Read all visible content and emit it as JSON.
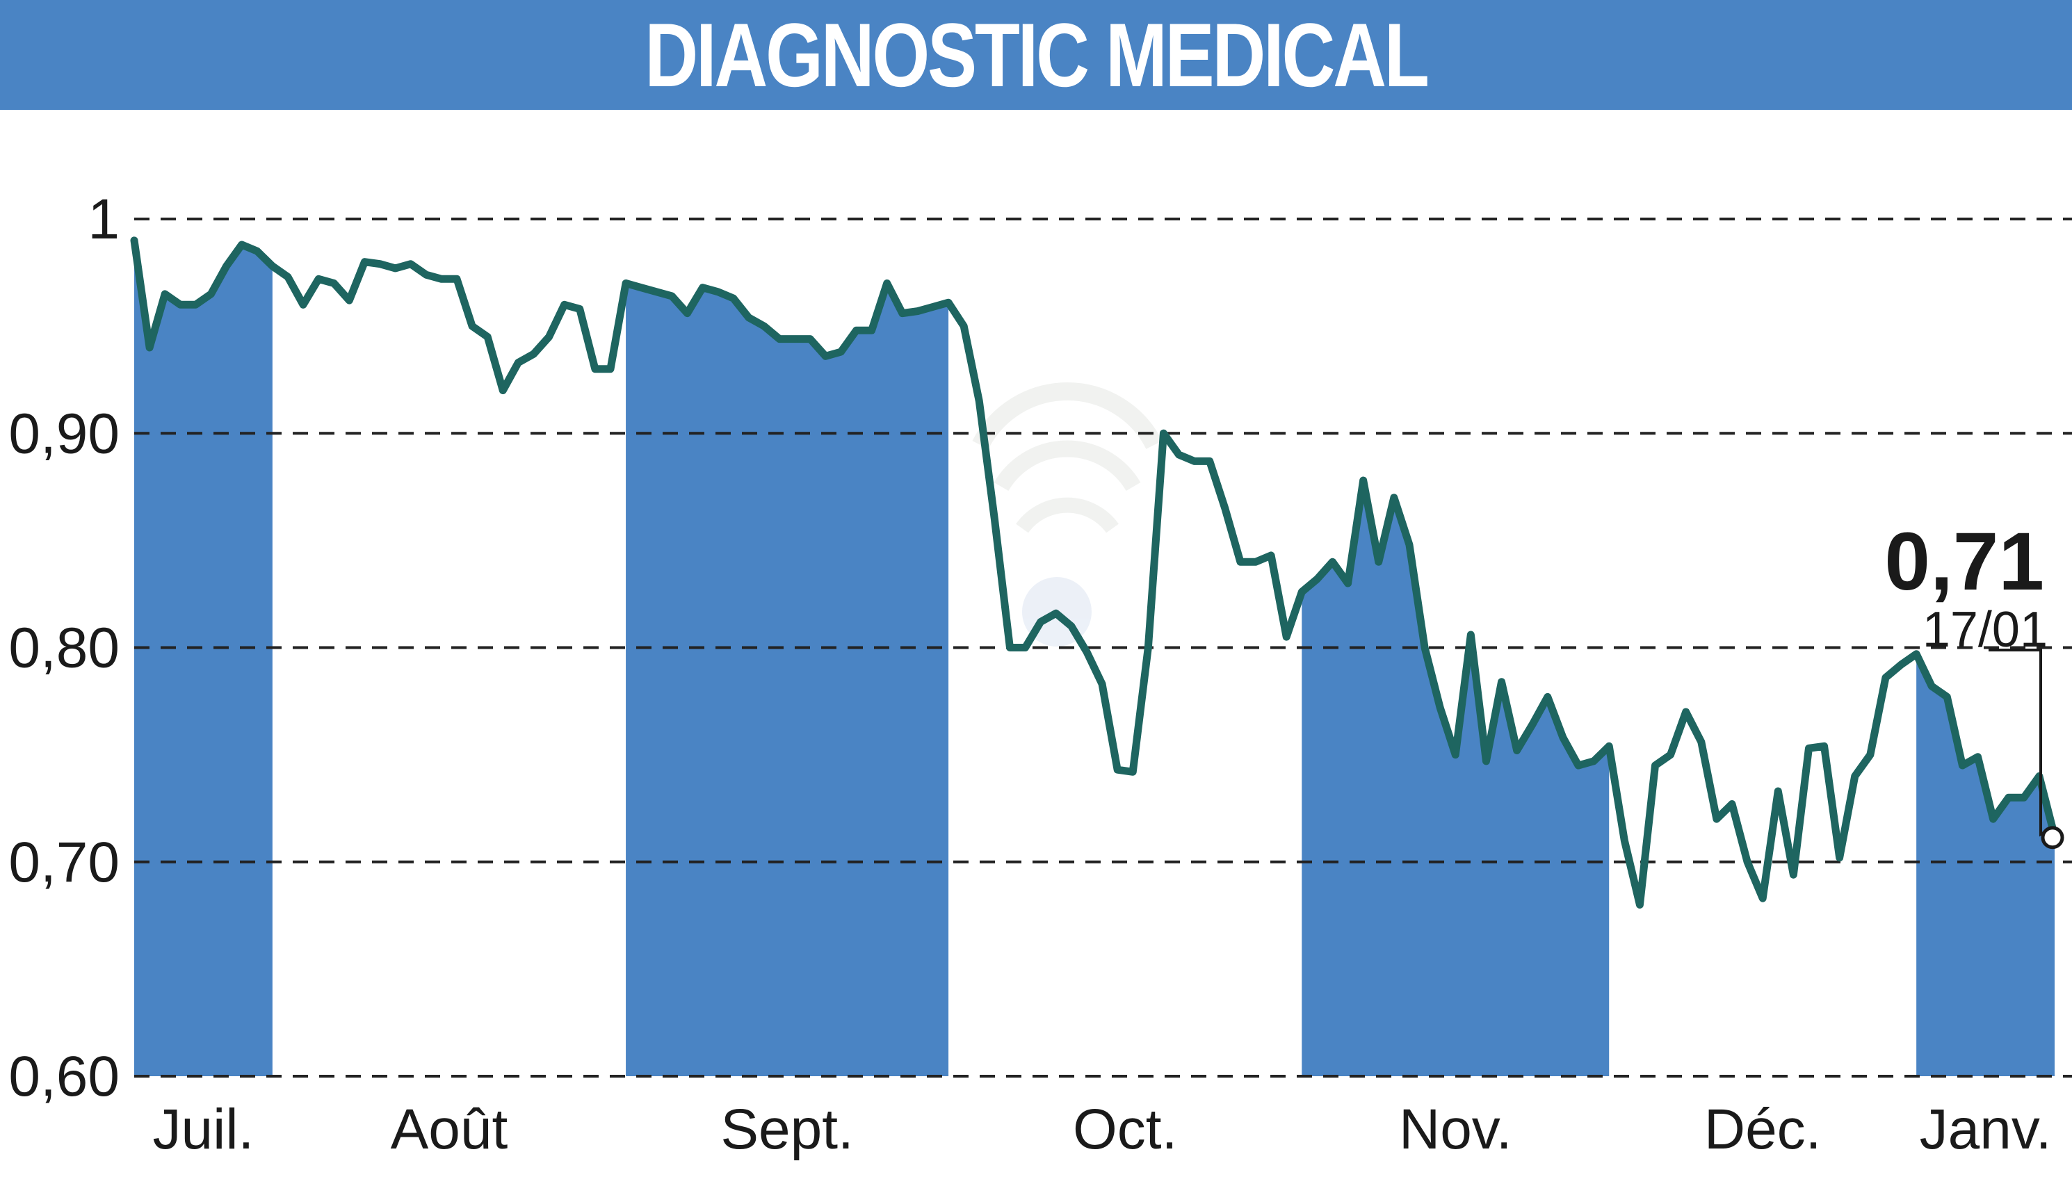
{
  "title": "DIAGNOSTIC MEDICAL",
  "colors": {
    "accent": "#4a84c4",
    "line": "#1e6560",
    "grid": "#222222"
  },
  "chart_data": {
    "type": "line",
    "title": "DIAGNOSTIC MEDICAL",
    "xlabel": "",
    "ylabel": "",
    "ylim": [
      0.6,
      1.0
    ],
    "yticks": [
      {
        "value": 1.0,
        "label": "1"
      },
      {
        "value": 0.9,
        "label": "0,90"
      },
      {
        "value": 0.8,
        "label": "0,80"
      },
      {
        "value": 0.7,
        "label": "0,70"
      },
      {
        "value": 0.6,
        "label": "0,60"
      }
    ],
    "grid": true,
    "months": [
      {
        "label": "Juil.",
        "start": 0,
        "end": 9,
        "shaded": true
      },
      {
        "label": "Août",
        "start": 9,
        "end": 32,
        "shaded": false
      },
      {
        "label": "Sept.",
        "start": 32,
        "end": 53,
        "shaded": true
      },
      {
        "label": "Oct.",
        "start": 53,
        "end": 76,
        "shaded": false
      },
      {
        "label": "Nov.",
        "start": 76,
        "end": 96,
        "shaded": true
      },
      {
        "label": "Déc.",
        "start": 96,
        "end": 116,
        "shaded": false
      },
      {
        "label": "Janv.",
        "start": 116,
        "end": 127,
        "shaded": true
      }
    ],
    "series": [
      {
        "values": [
          0.99,
          0.94,
          0.965,
          0.96,
          0.96,
          0.965,
          0.978,
          0.988,
          0.985,
          0.978,
          0.973,
          0.96,
          0.972,
          0.97,
          0.962,
          0.98,
          0.979,
          0.977,
          0.979,
          0.974,
          0.972,
          0.972,
          0.95,
          0.945,
          0.92,
          0.933,
          0.937,
          0.945,
          0.96,
          0.958,
          0.93,
          0.93,
          0.97,
          0.968,
          0.966,
          0.964,
          0.956,
          0.968,
          0.966,
          0.963,
          0.954,
          0.95,
          0.944,
          0.944,
          0.944,
          0.936,
          0.938,
          0.948,
          0.948,
          0.97,
          0.956,
          0.957,
          0.959,
          0.961,
          0.95,
          0.915,
          0.86,
          0.8,
          0.8,
          0.812,
          0.816,
          0.81,
          0.798,
          0.783,
          0.743,
          0.742,
          0.8,
          0.9,
          0.89,
          0.887,
          0.887,
          0.865,
          0.84,
          0.84,
          0.843,
          0.805,
          0.826,
          0.832,
          0.84,
          0.83,
          0.878,
          0.84,
          0.87,
          0.848,
          0.8,
          0.772,
          0.75,
          0.806,
          0.747,
          0.784,
          0.752,
          0.764,
          0.777,
          0.758,
          0.745,
          0.747,
          0.754,
          0.71,
          0.68,
          0.745,
          0.75,
          0.77,
          0.756,
          0.72,
          0.727,
          0.7,
          0.683,
          0.733,
          0.694,
          0.753,
          0.754,
          0.702,
          0.74,
          0.75,
          0.786,
          0.792,
          0.797,
          0.782,
          0.777,
          0.745,
          0.749,
          0.72,
          0.73,
          0.73,
          0.74,
          0.712
        ]
      }
    ],
    "last": {
      "value_label": "0,71",
      "date_label": "17/01",
      "value": 0.712
    },
    "legend": "none"
  }
}
